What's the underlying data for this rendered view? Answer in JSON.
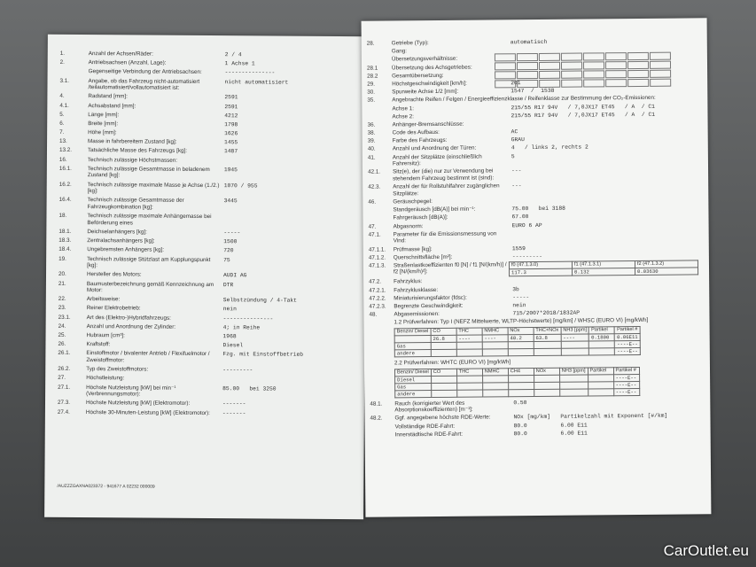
{
  "left_page": {
    "rows": [
      {
        "num": "1.",
        "label": "Anzahl der Achsen/Räder:",
        "value": "2 / 4"
      },
      {
        "num": "2.",
        "label": "Antriebsachsen (Anzahl, Lage):",
        "value": "1 Achse 1"
      },
      {
        "label": "Gegenseitige Verbindung der Antriebsachsen:",
        "value": "---------------"
      },
      {
        "num": "3.1.",
        "label": "Angabe, ob das Fahrzeug nicht-automatisiert /teilautomatisiert/vollautomatisiert ist:",
        "value": "nicht automatisiert"
      },
      {
        "num": "4.",
        "label": "Radstand [mm]:",
        "value": "2591"
      },
      {
        "num": "4.1.",
        "label": "Achsabstand [mm]:",
        "value": "2591"
      },
      {
        "num": "5.",
        "label": "Länge [mm]:",
        "value": "4212"
      },
      {
        "num": "6.",
        "label": "Breite [mm]:",
        "value": "1798"
      },
      {
        "num": "7.",
        "label": "Höhe [mm]:",
        "value": "1626"
      },
      {
        "num": "13.",
        "label": "Masse in fahrbereitem Zustand [kg]:",
        "value": "1455"
      },
      {
        "num": "13.2.",
        "label": "Tatsächliche Masse des Fahrzeugs [kg]:",
        "value": "1487"
      },
      {
        "num": "16.",
        "label": "Technisch zulässige Höchstmassen:"
      },
      {
        "num": "16.1.",
        "label": "Technisch zulässige Gesamtmasse in beladenem Zustand [kg]:",
        "value": "1945"
      },
      {
        "num": "16.2.",
        "label": "Technisch zulässige maximale Masse je Achse (1./2.) [kg]:",
        "value": "1070 / 955"
      },
      {
        "num": "16.4.",
        "label": "Technisch zulässige Gesamtmasse der Fahrzeugkombination [kg]:",
        "value": "3445"
      },
      {
        "num": "18.",
        "label": "Technisch zulässige maximale Anhängemasse bei Beförderung eines"
      },
      {
        "num": "18.1.",
        "label": "Deichselanhängers [kg]:",
        "value": "-----"
      },
      {
        "num": "18.3.",
        "label": "Zentralachsanhängers [kg]:",
        "value": "1500"
      },
      {
        "num": "18.4.",
        "label": "Ungebremsten Anhängers [kg]:",
        "value": "720"
      },
      {
        "num": "19.",
        "label": "Technisch zulässige Stützlast am Kupplungspunkt [kg]:",
        "value": "75"
      },
      {
        "num": "20.",
        "label": "Hersteller des Motors:",
        "value": "AUDI AG"
      },
      {
        "num": "21.",
        "label": "Baumusterbezeichnung gemäß Kennzeichnung am Motor:",
        "value": "DTR"
      },
      {
        "num": "22.",
        "label": "Arbeitsweise:",
        "value": "Selbstzündung / 4-Takt"
      },
      {
        "num": "23.",
        "label": "Reiner Elektrobetrieb:",
        "value": "nein"
      },
      {
        "num": "23.1.",
        "label": "Art des (Elektro-)Hybridfahrzeugs:",
        "value": "---------------"
      },
      {
        "num": "24.",
        "label": "Anzahl und Anordnung der Zylinder:",
        "value": "4; in Reihe"
      },
      {
        "num": "25.",
        "label": "Hubraum [cm³]:",
        "value": "1968"
      },
      {
        "num": "26.",
        "label": "Kraftstoff:",
        "value": "Diesel"
      },
      {
        "num": "26.1.",
        "label": "Einstoffmotor / bivalenter Antrieb / Flexifuelmotor / Zweistoffmotor:",
        "value": "Fzg. mit Einstoffbetrieb"
      },
      {
        "num": "26.2.",
        "label": "Typ des Zweistoffmotors:",
        "value": "---------"
      },
      {
        "num": "27.",
        "label": "Höchstleistung:"
      },
      {
        "num": "27.1.",
        "label": "Höchste Nutzleistung [kW] bei min⁻¹ (Verbrennungsmotor):",
        "value": "85.00   bei 3250"
      },
      {
        "num": "27.3.",
        "label": "Höchste Nutzleistung [kW] (Elektromotor):",
        "value": "-------"
      },
      {
        "num": "27.4.",
        "label": "Höchste 30-Minuten-Leistung [kW] (Elektromotor):",
        "value": "-------"
      }
    ],
    "footer_code": "/AUZZZGAXNA023372 - 941677 A 02232    000009"
  },
  "right_page": {
    "rows_top": [
      {
        "num": "28.",
        "label": "Getriebe (Typ):",
        "value": "automatisch"
      },
      {
        "label": "Gang:"
      },
      {
        "label": "Übersetzungsverhältnisse:"
      },
      {
        "num": "28.1",
        "label": "Übersetzung des Achsgetriebes:"
      },
      {
        "num": "28.2",
        "label": "Gesamtübersetzung:"
      },
      {
        "num": "29.",
        "label": "Höchstgeschwindigkeit [km/h]:",
        "value": "201"
      },
      {
        "num": "30.",
        "label": "Spurweite Achse 1/2 [mm]:",
        "value": "1547  /  1538"
      },
      {
        "num": "35.",
        "label": "Angebrachte Reifen / Felgen / Energieeffizienzklasse / Reifenklasse zur Bestimmung der CO₂-Emissionen:"
      },
      {
        "label": "Achse 1:",
        "value": "215/55 R17 94V   / 7,0JX17 ET45   / A  / C1"
      },
      {
        "label": "Achse 2:",
        "value": "215/55 R17 94V   / 7,0JX17 ET45   / A  / C1"
      },
      {
        "num": "36.",
        "label": "Anhänger-Bremsanschlüsse:"
      },
      {
        "num": "38.",
        "label": "Code des Aufbaus:",
        "value": "AC"
      },
      {
        "num": "39.",
        "label": "Farbe des Fahrzeugs:",
        "value": "GRAU"
      },
      {
        "num": "40.",
        "label": "Anzahl und Anordnung der Türen:",
        "value": "4   / links 2, rechts 2"
      },
      {
        "num": "41.",
        "label": "Anzahl der Sitzplätze (einschließlich Fahrersitz):",
        "value": "5"
      },
      {
        "num": "42.1.",
        "label": "Sitz(e), der (die) nur zur Verwendung bei stehendem Fahrzeug bestimmt ist (sind):",
        "value": "---"
      },
      {
        "num": "42.3.",
        "label": "Anzahl der für Rollstuhlfahrer zugänglichen Sitzplätze:",
        "value": "---"
      },
      {
        "num": "46.",
        "label": "Geräuschpegel:"
      },
      {
        "label": "Standgeräusch [dB(A)] bei min⁻¹:",
        "value": "75.00   bei 3188"
      },
      {
        "label": "Fahrgeräusch [dB(A)]:",
        "value": "67.00"
      },
      {
        "num": "47.",
        "label": "Abgasnorm:",
        "value": "EURO 6 AP"
      },
      {
        "num": "47.1.",
        "label": "Parameter für die Emissionsmessung von Vind:"
      },
      {
        "num": "47.1.1.",
        "label": "Prüfmasse [kg]:",
        "value": "1559"
      },
      {
        "num": "47.1.2.",
        "label": "Querschnittsfläche [m²]:",
        "value": "---------"
      }
    ],
    "road_load": {
      "num": "47.1.3.",
      "label": "Straßenlastkoeffizienten f0 [N] / f1 [N/(km/h)] / f2 [N/(km/h)²]:",
      "headers": [
        "f0 (47.1.3.0)",
        "f1 (47.1.3.1)",
        "f2 (47.1.3.2)"
      ],
      "values": [
        "117.3",
        "0.132",
        "0.03630"
      ]
    },
    "rows_mid": [
      {
        "num": "47.2.",
        "label": "Fahrzyklus:"
      },
      {
        "num": "47.2.1.",
        "label": "Fahrzyklusklasse:",
        "value": "3b"
      },
      {
        "num": "47.2.2.",
        "label": "Miniaturisierungsfaktor (fdsc):",
        "value": "-----"
      },
      {
        "num": "47.2.3.",
        "label": "Begrenzte Geschwindigkeit:",
        "value": "nein"
      },
      {
        "num": "48.",
        "label": "Abgasemissionen:",
        "value": "715/2007*2018/1832AP"
      },
      {
        "label": "1.2 Prüfverfahren: Typ I (NEFZ Mittelwerte, WLTP-Höchstwerte) [mg/km] / WHSC (EURO VI) [mg/kWh]"
      }
    ],
    "emissions_1": {
      "header": [
        "Benzin/ Diesel",
        "CO",
        "THC",
        "NMHC",
        "NOx",
        "THC+NOx",
        "NH3 [ppm]",
        "Partikel",
        "Partikel #"
      ],
      "rows": [
        [
          "Gas",
          "",
          "",
          "",
          "",
          "",
          "",
          "",
          "----E--"
        ],
        [
          "andere",
          "",
          "",
          "",
          "",
          "",
          "",
          "",
          "----E--"
        ]
      ],
      "first_row": [
        "26.8",
        "----",
        "----",
        "40.2",
        "63.8",
        "----",
        "0.1800",
        "0.06E11"
      ]
    },
    "test_2_title": "2.2 Prüfverfahren: WHTC (EURO VI) [mg/kWh]",
    "emissions_2": {
      "header": [
        "Benzin/ Diesel",
        "CO",
        "THC",
        "NMHC",
        "CH4",
        "NOx",
        "NH3 [ppm]",
        "Partikel",
        "Partikel #"
      ],
      "rows": [
        [
          "Diesel",
          "",
          "",
          "",
          "",
          "",
          "",
          "",
          "----E--"
        ],
        [
          "Gas",
          "",
          "",
          "",
          "",
          "",
          "",
          "",
          "----E--"
        ],
        [
          "andere",
          "",
          "",
          "",
          "",
          "",
          "",
          "",
          "----E--"
        ]
      ]
    },
    "rows_bottom": [
      {
        "num": "48.1.",
        "label": "Rauch (korrigierter Wert des Absorptionskoeffizienten) [m⁻¹]:",
        "value": "0.50"
      },
      {
        "num": "48.2.",
        "label": "Ggf. angegebene höchste RDE-Werte:",
        "value": "NOx [mg/km]   Partikelzahl mit Exponent [#/km]"
      },
      {
        "label": "Vollständige RDE-Fahrt:",
        "value": "80.0          6.00 E11"
      },
      {
        "label": "Innerstädtische RDE-Fahrt:",
        "value": "80.0          6.00 E11"
      }
    ]
  },
  "watermark": "CarOutlet.eu"
}
